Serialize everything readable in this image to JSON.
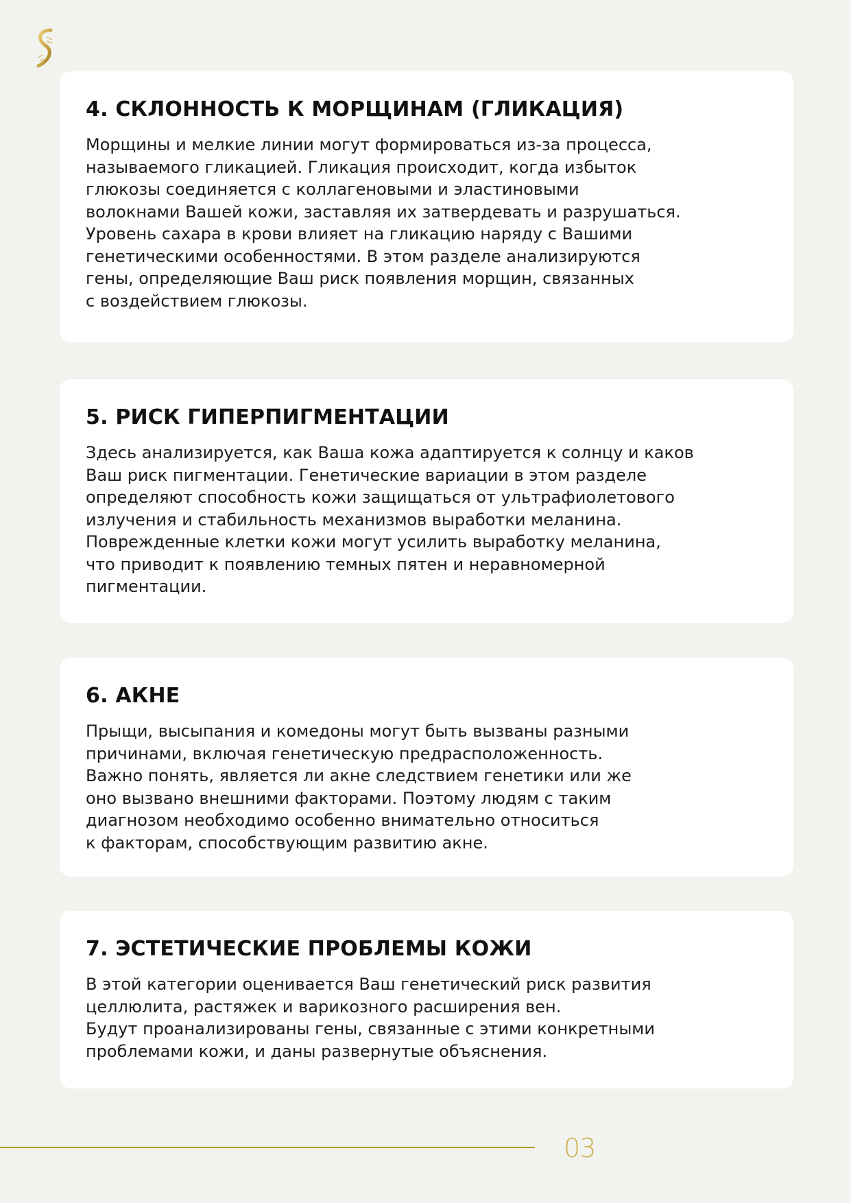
{
  "sections": [
    {
      "title": "4. СКЛОННОСТЬ К МОРЩИНАМ (ГЛИКАЦИЯ)",
      "lines": [
        "Морщины и мелкие линии могут формироваться из-за процесса,",
        "называемого гликацией. Гликация происходит, когда избыток",
        "глюкозы соединяется с коллагеновыми и эластиновыми",
        "волокнами Вашей кожи, заставляя их затвердевать и разрушаться.",
        "Уровень сахара в крови влияет на гликацию наряду с Вашими",
        "генетическими особенностями. В этом разделе анализируются",
        "гены, определяющие Ваш риск появления морщин, связанных",
        "с воздействием глюкозы."
      ]
    },
    {
      "title": "5. РИСК ГИПЕРПИГМЕНТАЦИИ",
      "lines": [
        "Здесь анализируется, как Ваша кожа адаптируется к солнцу и каков",
        "Ваш риск пигментации. Генетические вариации в этом разделе",
        "определяют способность кожи защищаться от ультрафиолетового",
        "излучения и стабильность механизмов выработки меланина.",
        "Поврежденные клетки кожи могут усилить выработку меланина,",
        "что приводит к появлению темных пятен и неравномерной",
        "пигментации."
      ]
    },
    {
      "title": "6. АКНЕ",
      "lines": [
        "Прыщи, высыпания и комедоны могут быть вызваны разными",
        "причинами, включая генетическую предрасположенность.",
        "Важно понять, является ли акне следствием генетики или же",
        "оно вызвано внешними факторами. Поэтому людям с таким",
        "диагнозом необходимо особенно внимательно относиться",
        "к факторам, способствующим развитию акне."
      ]
    },
    {
      "title": "7. ЭСТЕТИЧЕСКИЕ ПРОБЛЕМЫ КОЖИ",
      "lines": [
        "В этой категории оценивается Ваш генетический риск развития",
        "целлюлита, растяжек и варикозного расширения вен.",
        "Будут проанализированы гены, связанные с этими конкретными",
        "проблемами кожи, и даны развернутые объяснения."
      ]
    }
  ],
  "footer": {
    "page_number": "03"
  },
  "colors": {
    "accent": "#b8962e",
    "background": "#f2f2ef"
  },
  "logo": {
    "icon": "dna-helix-icon"
  }
}
